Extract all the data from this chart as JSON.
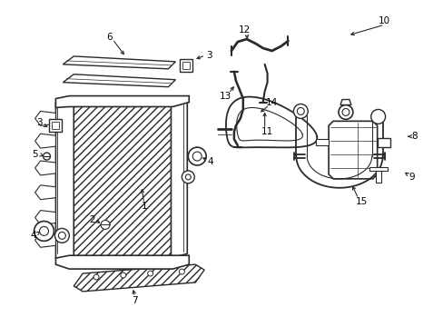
{
  "bg_color": "#ffffff",
  "lc": "#2a2a2a",
  "figsize": [
    4.89,
    3.6
  ],
  "dpi": 100,
  "fs": 7.5
}
